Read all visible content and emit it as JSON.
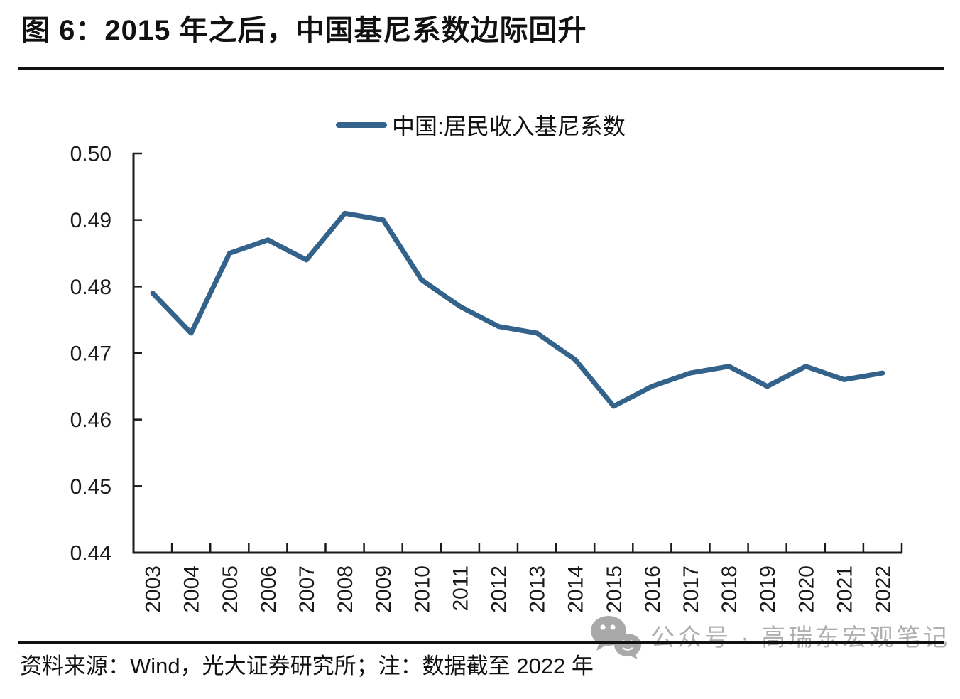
{
  "page": {
    "title": "图 6：2015 年之后，中国基尼系数边际回升",
    "source_note": "资料来源：Wind，光大证券研究所；注：数据截至 2022 年",
    "watermark_text": "公众号 · 高瑞东宏观笔记"
  },
  "colors": {
    "line": "#33628a",
    "axis": "#1a1a1a",
    "label_text": "#1a1a1a",
    "watermark": "#b0b0b0"
  },
  "chart_data": {
    "type": "line",
    "title": "图 6：2015 年之后，中国基尼系数边际回升",
    "x": [
      "2003",
      "2004",
      "2005",
      "2006",
      "2007",
      "2008",
      "2009",
      "2010",
      "2011",
      "2012",
      "2013",
      "2014",
      "2015",
      "2016",
      "2017",
      "2018",
      "2019",
      "2020",
      "2021",
      "2022"
    ],
    "series": [
      {
        "name": "中国:居民收入基尼系数",
        "color": "#33628a",
        "values": [
          0.479,
          0.473,
          0.485,
          0.487,
          0.484,
          0.491,
          0.49,
          0.481,
          0.477,
          0.474,
          0.473,
          0.469,
          0.462,
          0.465,
          0.467,
          0.468,
          0.465,
          0.468,
          0.466,
          0.467
        ]
      }
    ],
    "ylim": [
      0.44,
      0.5
    ],
    "ytick_step": 0.01,
    "ytick_labels": [
      "0.44",
      "0.45",
      "0.46",
      "0.47",
      "0.48",
      "0.49",
      "0.50"
    ],
    "xlabel": "",
    "ylabel": "",
    "grid": false,
    "legend_position": "top-center",
    "x_label_rotation": -90
  }
}
